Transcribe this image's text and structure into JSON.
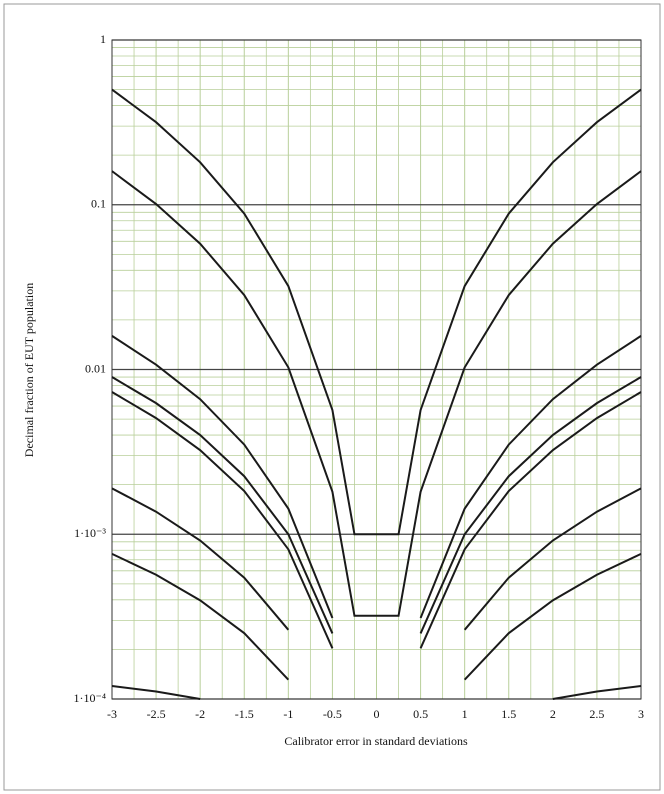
{
  "chart_data": {
    "type": "line",
    "xlabel": "Calibrator error in standard deviations",
    "ylabel": "Decimal fraction of EUT population",
    "x": [
      -3,
      -2.5,
      -2,
      -1.5,
      -1,
      -0.5,
      -0.25,
      0.25,
      0.5,
      1,
      1.5,
      2,
      2.5,
      3
    ],
    "series": [
      {
        "color": "#1a1a1a",
        "values": [
          0.5,
          0.317,
          0.181,
          0.0884,
          0.0321,
          0.00567,
          0.001,
          0.001,
          0.00567,
          0.0321,
          0.0884,
          0.181,
          0.317,
          0.5
        ]
      },
      {
        "color": "#1a1a1a",
        "values": [
          0.16,
          0.101,
          0.058,
          0.0283,
          0.0103,
          0.00181,
          0.00032,
          0.00032,
          0.00181,
          0.0103,
          0.0283,
          0.058,
          0.101,
          0.16
        ]
      },
      {
        "color": "#1a1a1a",
        "values": [
          0.016,
          0.0107,
          0.0066,
          0.0035,
          0.00143,
          0.00031,
          null,
          null,
          0.00031,
          0.00143,
          0.0035,
          0.0066,
          0.0107,
          0.016
        ]
      },
      {
        "color": "#1a1a1a",
        "values": [
          0.009,
          0.00625,
          0.004,
          0.00225,
          0.001,
          0.00025,
          null,
          null,
          0.00025,
          0.001,
          0.00225,
          0.004,
          0.00625,
          0.009
        ]
      },
      {
        "color": "#1a1a1a",
        "values": [
          0.0073,
          0.00507,
          0.00324,
          0.00183,
          0.00081,
          0.000203,
          null,
          null,
          0.000203,
          0.00081,
          0.00183,
          0.00324,
          0.00507,
          0.0073
        ]
      },
      {
        "color": "#1a1a1a",
        "values": [
          0.0019,
          0.00137,
          0.000916,
          0.000545,
          0.000263,
          null,
          null,
          null,
          null,
          0.000263,
          0.000545,
          0.000916,
          0.00137,
          0.0019
        ]
      },
      {
        "color": "#1a1a1a",
        "values": [
          0.00076,
          0.000568,
          0.000397,
          0.000251,
          0.000131,
          null,
          null,
          null,
          null,
          0.000131,
          0.000251,
          0.000397,
          0.000568,
          0.00076
        ]
      },
      {
        "color": "#1a1a1a",
        "values": [
          0.00012,
          0.000111,
          0.0001,
          null,
          null,
          null,
          null,
          null,
          null,
          null,
          null,
          0.0001,
          0.000111,
          0.00012
        ]
      }
    ],
    "xlim": [
      -3,
      3
    ],
    "xticks": [
      -3,
      -2.5,
      -2,
      -1.5,
      -1,
      -0.5,
      0,
      0.5,
      1,
      1.5,
      2,
      2.5,
      3
    ],
    "ylim": [
      0.0001,
      1
    ],
    "yticks": [
      1,
      0.1,
      0.01,
      {
        "value": 0.001,
        "label": "1·10⁻³"
      },
      {
        "value": 0.0001,
        "label": "1·10⁻⁴"
      }
    ],
    "ylog": true,
    "grid": true,
    "grid_color": "#b8cf9a"
  }
}
